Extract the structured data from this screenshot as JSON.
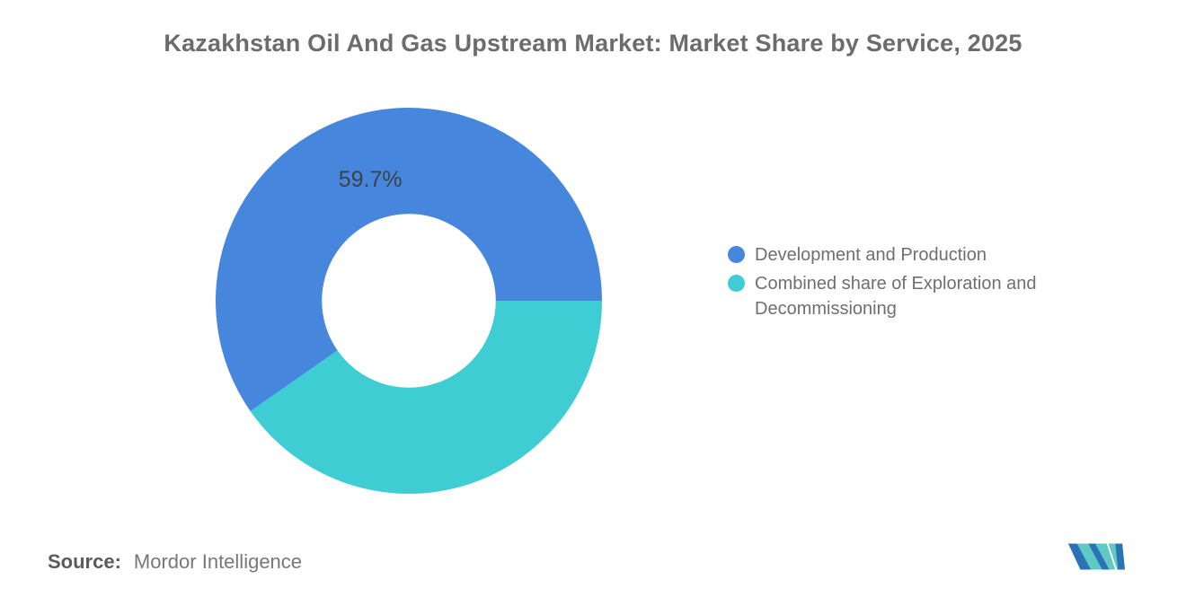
{
  "title": "Kazakhstan Oil And Gas Upstream Market: Market Share by Service, 2025",
  "chart_data": {
    "type": "pie",
    "subtype": "donut",
    "title": "Kazakhstan Oil And Gas Upstream Market: Market Share by Service, 2025",
    "categories": [
      "Development and Production",
      "Combined share of Exploration and Decommissioning"
    ],
    "values": [
      59.7,
      40.3
    ],
    "colors": [
      "#4687DD",
      "#3FCDD4"
    ],
    "labels_shown": [
      "59.7%",
      ""
    ],
    "start_angle_deg": 0,
    "direction": "counterclockwise",
    "inner_radius_ratio": 0.45,
    "legend_position": "right",
    "grid": false
  },
  "legend": {
    "items": [
      {
        "label": "Development and Production",
        "color": "#4687DD"
      },
      {
        "label": "Combined share of Exploration and Decommissioning",
        "color": "#3FCDD4"
      }
    ]
  },
  "source": {
    "label": "Source:",
    "value": "Mordor Intelligence"
  },
  "logo": {
    "name": "mordor-intelligence-logo",
    "blue": "#2C73B5",
    "teal": "#60C8C5"
  }
}
